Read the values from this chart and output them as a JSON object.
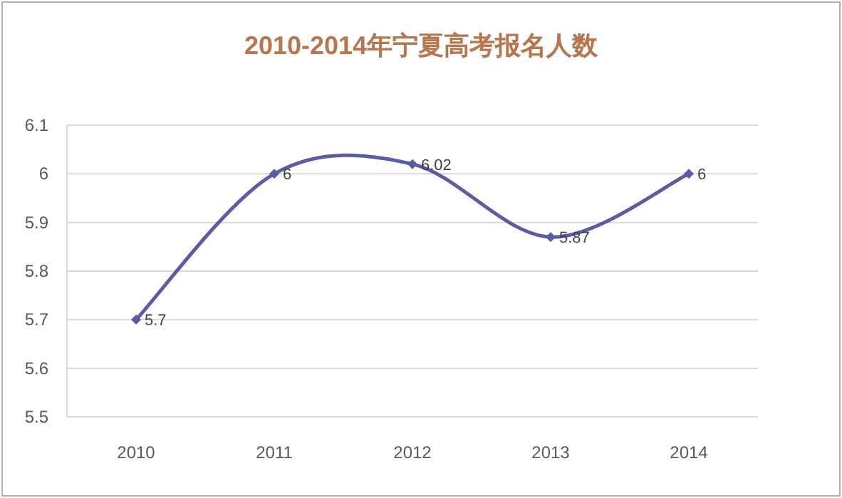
{
  "chart_data": {
    "type": "line",
    "title": "2010-2014年宁夏高考报名人数",
    "categories": [
      "2010",
      "2011",
      "2012",
      "2013",
      "2014"
    ],
    "series": [
      {
        "color": "#5b5ba6",
        "values": [
          5.7,
          6,
          6.02,
          5.87,
          6
        ]
      }
    ],
    "ylim": [
      5.5,
      6.1
    ],
    "yticks": [
      5.5,
      5.6,
      5.7,
      5.8,
      5.9,
      6,
      6.1
    ],
    "grid": "y",
    "marker": "diamond",
    "line_style": "solid",
    "data_labels": true
  }
}
